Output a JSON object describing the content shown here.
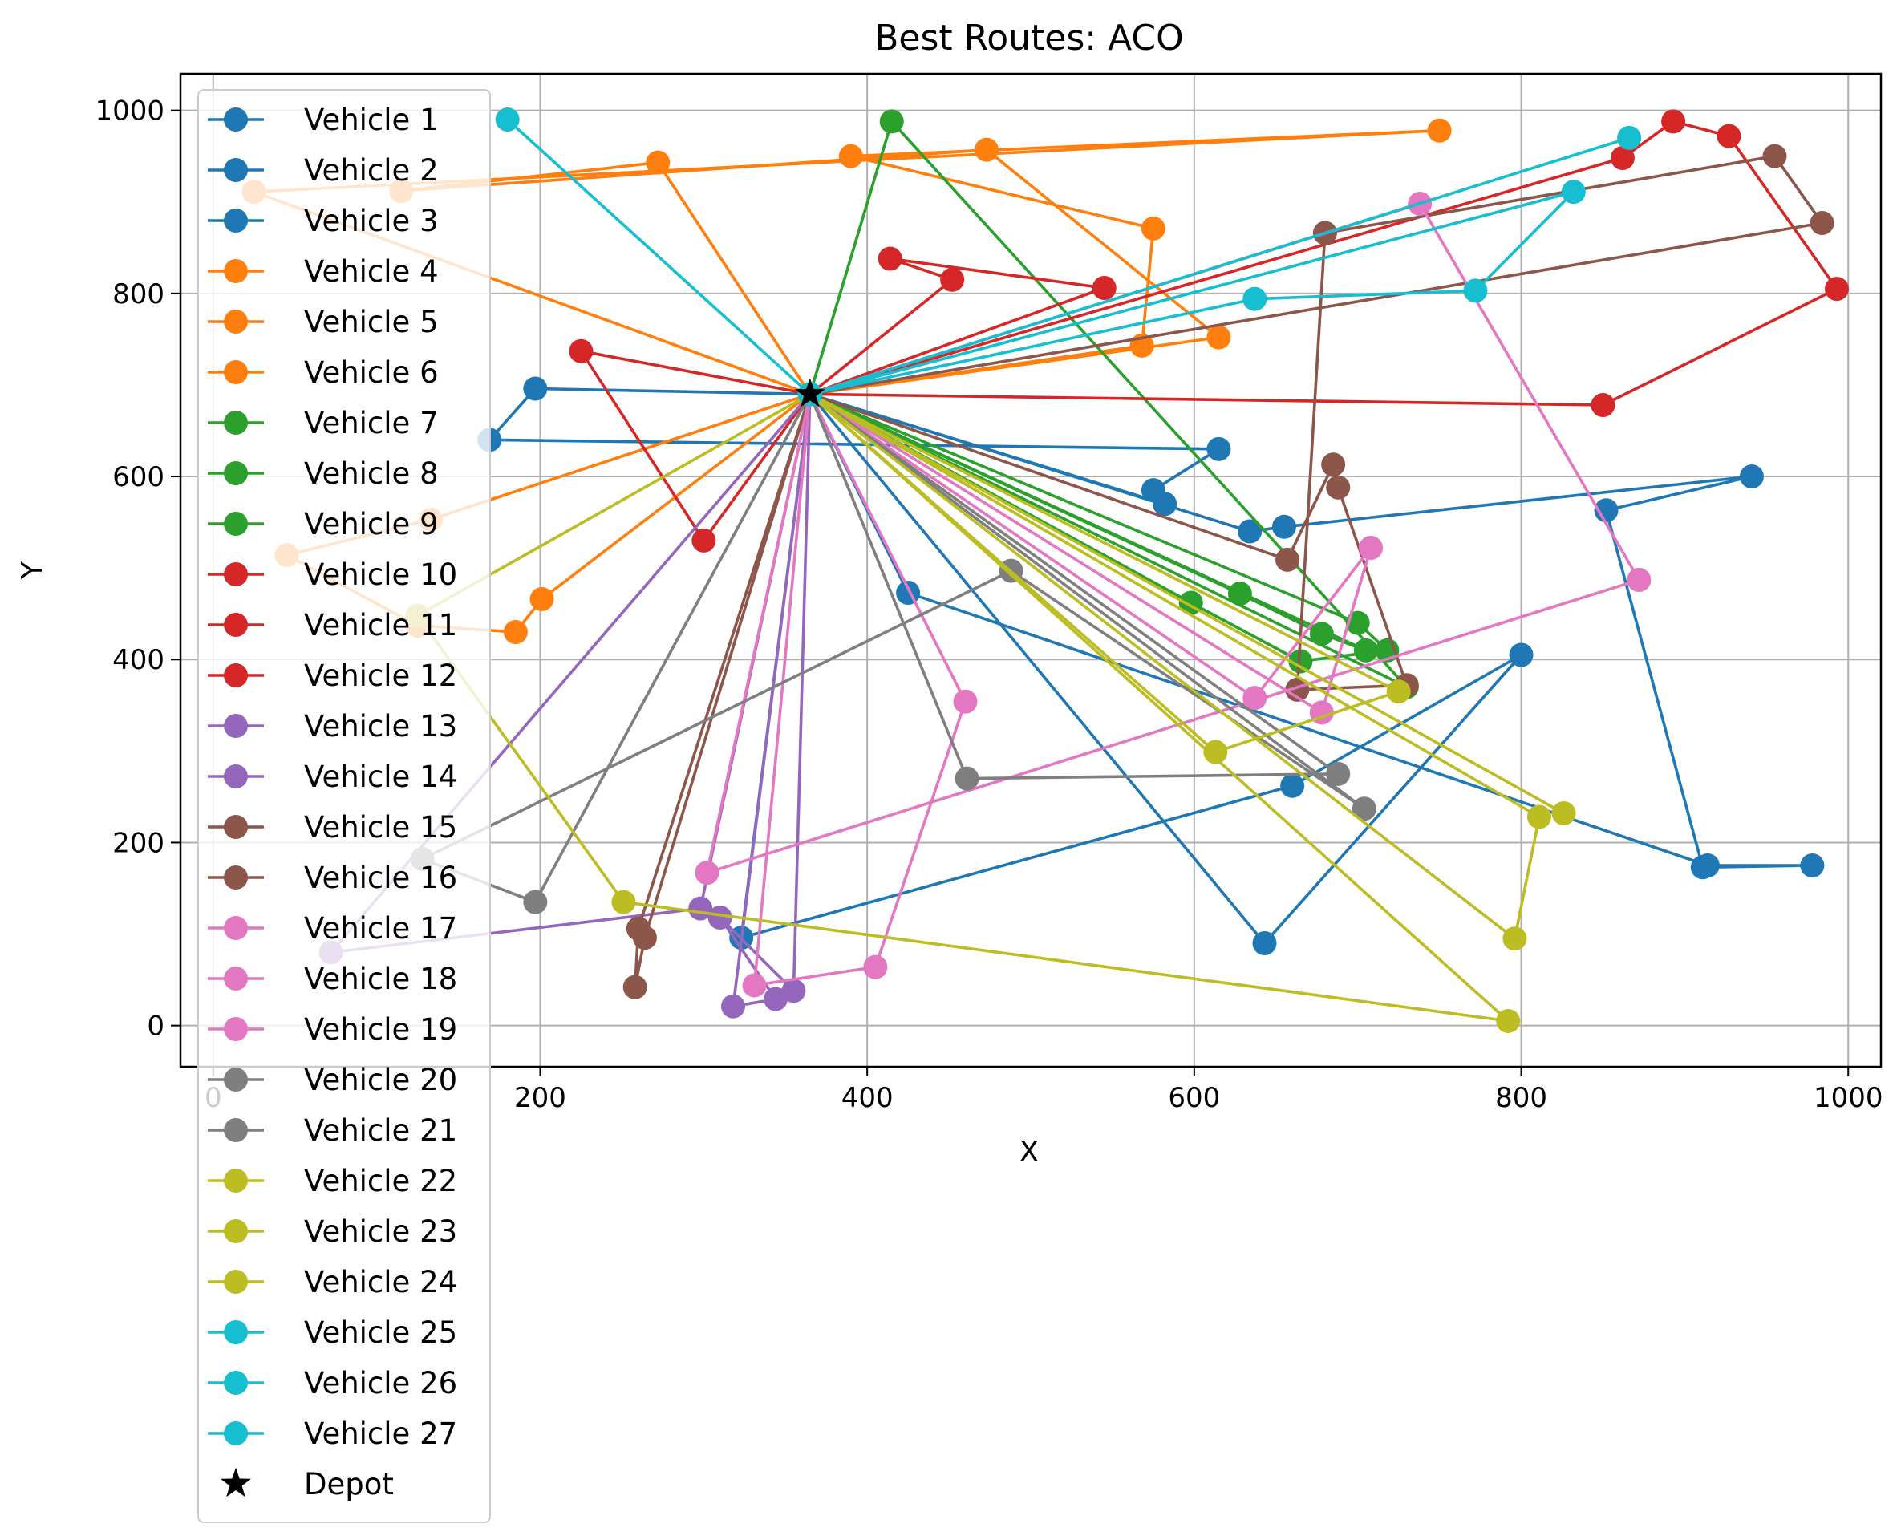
{
  "chart_data": {
    "type": "line",
    "title": "Best Routes: ACO",
    "xlabel": "X",
    "ylabel": "Y",
    "xlim": [
      -20,
      1020
    ],
    "ylim": [
      -45,
      1040
    ],
    "xticks": [
      0,
      200,
      400,
      600,
      800,
      1000
    ],
    "yticks": [
      0,
      200,
      400,
      600,
      800,
      1000
    ],
    "grid": true,
    "legend_position": "upper-left",
    "depot": {
      "name": "Depot",
      "x": 365,
      "y": 690
    },
    "series": [
      {
        "name": "Vehicle 1",
        "color": "#1f77b4",
        "points": [
          [
            365,
            690
          ],
          [
            425,
            473
          ],
          [
            914,
            175
          ],
          [
            978,
            175
          ],
          [
            911,
            173
          ],
          [
            852,
            563
          ],
          [
            941,
            600
          ],
          [
            655,
            545
          ],
          [
            634,
            540
          ],
          [
            365,
            690
          ]
        ]
      },
      {
        "name": "Vehicle 2",
        "color": "#1f77b4",
        "points": [
          [
            365,
            690
          ],
          [
            582,
            570
          ],
          [
            575,
            585
          ],
          [
            615,
            630
          ],
          [
            169,
            640
          ],
          [
            197,
            696
          ],
          [
            365,
            690
          ]
        ]
      },
      {
        "name": "Vehicle 3",
        "color": "#1f77b4",
        "points": [
          [
            365,
            690
          ],
          [
            643,
            90
          ],
          [
            800,
            405
          ],
          [
            660,
            262
          ],
          [
            323,
            96
          ],
          [
            365,
            690
          ]
        ]
      },
      {
        "name": "Vehicle 4",
        "color": "#ff7f0e",
        "points": [
          [
            365,
            690
          ],
          [
            25,
            911
          ],
          [
            750,
            978
          ],
          [
            390,
            950
          ],
          [
            575,
            871
          ],
          [
            568,
            743
          ],
          [
            365,
            690
          ]
        ]
      },
      {
        "name": "Vehicle 5",
        "color": "#ff7f0e",
        "points": [
          [
            365,
            690
          ],
          [
            201,
            466
          ],
          [
            185,
            430
          ],
          [
            125,
            437
          ],
          [
            45,
            514
          ],
          [
            133,
            553
          ],
          [
            365,
            690
          ]
        ]
      },
      {
        "name": "Vehicle 6",
        "color": "#ff7f0e",
        "points": [
          [
            365,
            690
          ],
          [
            272,
            943
          ],
          [
            115,
            912
          ],
          [
            473,
            957
          ],
          [
            615,
            752
          ],
          [
            365,
            690
          ]
        ]
      },
      {
        "name": "Vehicle 7",
        "color": "#2ca02c",
        "points": [
          [
            365,
            690
          ],
          [
            598,
            462
          ],
          [
            665,
            398
          ],
          [
            718,
            410
          ],
          [
            700,
            440
          ],
          [
            365,
            690
          ]
        ]
      },
      {
        "name": "Vehicle 8",
        "color": "#2ca02c",
        "points": [
          [
            365,
            690
          ],
          [
            628,
            472
          ],
          [
            678,
            428
          ],
          [
            705,
            410
          ],
          [
            365,
            690
          ]
        ]
      },
      {
        "name": "Vehicle 9",
        "color": "#2ca02c",
        "points": [
          [
            365,
            690
          ],
          [
            415,
            988
          ],
          [
            730,
            370
          ],
          [
            365,
            690
          ]
        ]
      },
      {
        "name": "Vehicle 10",
        "color": "#d62728",
        "points": [
          [
            365,
            690
          ],
          [
            452,
            815
          ],
          [
            414,
            838
          ],
          [
            545,
            806
          ],
          [
            365,
            690
          ]
        ]
      },
      {
        "name": "Vehicle 11",
        "color": "#d62728",
        "points": [
          [
            365,
            690
          ],
          [
            300,
            530
          ],
          [
            225,
            737
          ],
          [
            365,
            690
          ]
        ]
      },
      {
        "name": "Vehicle 12",
        "color": "#d62728",
        "points": [
          [
            365,
            690
          ],
          [
            850,
            678
          ],
          [
            993,
            805
          ],
          [
            927,
            972
          ],
          [
            893,
            988
          ],
          [
            862,
            948
          ],
          [
            365,
            690
          ]
        ]
      },
      {
        "name": "Vehicle 13",
        "color": "#9467bd",
        "points": [
          [
            365,
            690
          ],
          [
            72,
            80
          ],
          [
            298,
            128
          ],
          [
            365,
            690
          ]
        ]
      },
      {
        "name": "Vehicle 14",
        "color": "#9467bd",
        "points": [
          [
            365,
            690
          ],
          [
            318,
            21
          ],
          [
            344,
            29
          ],
          [
            310,
            118
          ],
          [
            355,
            38
          ],
          [
            365,
            690
          ]
        ]
      },
      {
        "name": "Vehicle 15",
        "color": "#8c564b",
        "points": [
          [
            365,
            690
          ],
          [
            260,
            106
          ],
          [
            258,
            42
          ],
          [
            264,
            96
          ],
          [
            365,
            690
          ]
        ]
      },
      {
        "name": "Vehicle 16",
        "color": "#8c564b",
        "points": [
          [
            365,
            690
          ],
          [
            657,
            509
          ],
          [
            685,
            613
          ],
          [
            688,
            588
          ],
          [
            730,
            372
          ],
          [
            663,
            367
          ],
          [
            680,
            866
          ],
          [
            955,
            950
          ],
          [
            984,
            877
          ],
          [
            365,
            690
          ]
        ]
      },
      {
        "name": "Vehicle 17",
        "color": "#e377c2",
        "points": [
          [
            365,
            690
          ],
          [
            302,
            167
          ],
          [
            872,
            487
          ],
          [
            738,
            898
          ],
          [
            365,
            690
          ]
        ]
      },
      {
        "name": "Vehicle 18",
        "color": "#e377c2",
        "points": [
          [
            365,
            690
          ],
          [
            678,
            342
          ],
          [
            708,
            522
          ],
          [
            637,
            358
          ],
          [
            365,
            690
          ]
        ]
      },
      {
        "name": "Vehicle 19",
        "color": "#e377c2",
        "points": [
          [
            365,
            690
          ],
          [
            460,
            354
          ],
          [
            405,
            64
          ],
          [
            331,
            44
          ],
          [
            365,
            690
          ]
        ]
      },
      {
        "name": "Vehicle 20",
        "color": "#7f7f7f",
        "points": [
          [
            365,
            690
          ],
          [
            461,
            270
          ],
          [
            688,
            275
          ],
          [
            365,
            690
          ]
        ]
      },
      {
        "name": "Vehicle 21",
        "color": "#7f7f7f",
        "points": [
          [
            365,
            690
          ],
          [
            197,
            135
          ],
          [
            128,
            182
          ],
          [
            488,
            497
          ],
          [
            704,
            237
          ],
          [
            365,
            690
          ]
        ]
      },
      {
        "name": "Vehicle 22",
        "color": "#bcbd22",
        "points": [
          [
            365,
            690
          ],
          [
            125,
            448
          ],
          [
            251,
            135
          ],
          [
            792,
            5
          ],
          [
            365,
            690
          ]
        ]
      },
      {
        "name": "Vehicle 23",
        "color": "#bcbd22",
        "points": [
          [
            365,
            690
          ],
          [
            826,
            232
          ],
          [
            365,
            690
          ]
        ]
      },
      {
        "name": "Vehicle 24",
        "color": "#bcbd22",
        "points": [
          [
            365,
            690
          ],
          [
            796,
            95
          ],
          [
            811,
            228
          ],
          [
            365,
            690
          ],
          [
            613,
            299
          ],
          [
            725,
            365
          ],
          [
            365,
            690
          ]
        ]
      },
      {
        "name": "Vehicle 25",
        "color": "#17becf",
        "points": [
          [
            365,
            690
          ],
          [
            180,
            990
          ],
          [
            365,
            690
          ]
        ]
      },
      {
        "name": "Vehicle 26",
        "color": "#17becf",
        "points": [
          [
            365,
            690
          ],
          [
            866,
            970
          ],
          [
            365,
            690
          ]
        ]
      },
      {
        "name": "Vehicle 27",
        "color": "#17becf",
        "points": [
          [
            365,
            690
          ],
          [
            637,
            794
          ],
          [
            772,
            803
          ],
          [
            832,
            911
          ],
          [
            365,
            690
          ]
        ]
      }
    ]
  }
}
